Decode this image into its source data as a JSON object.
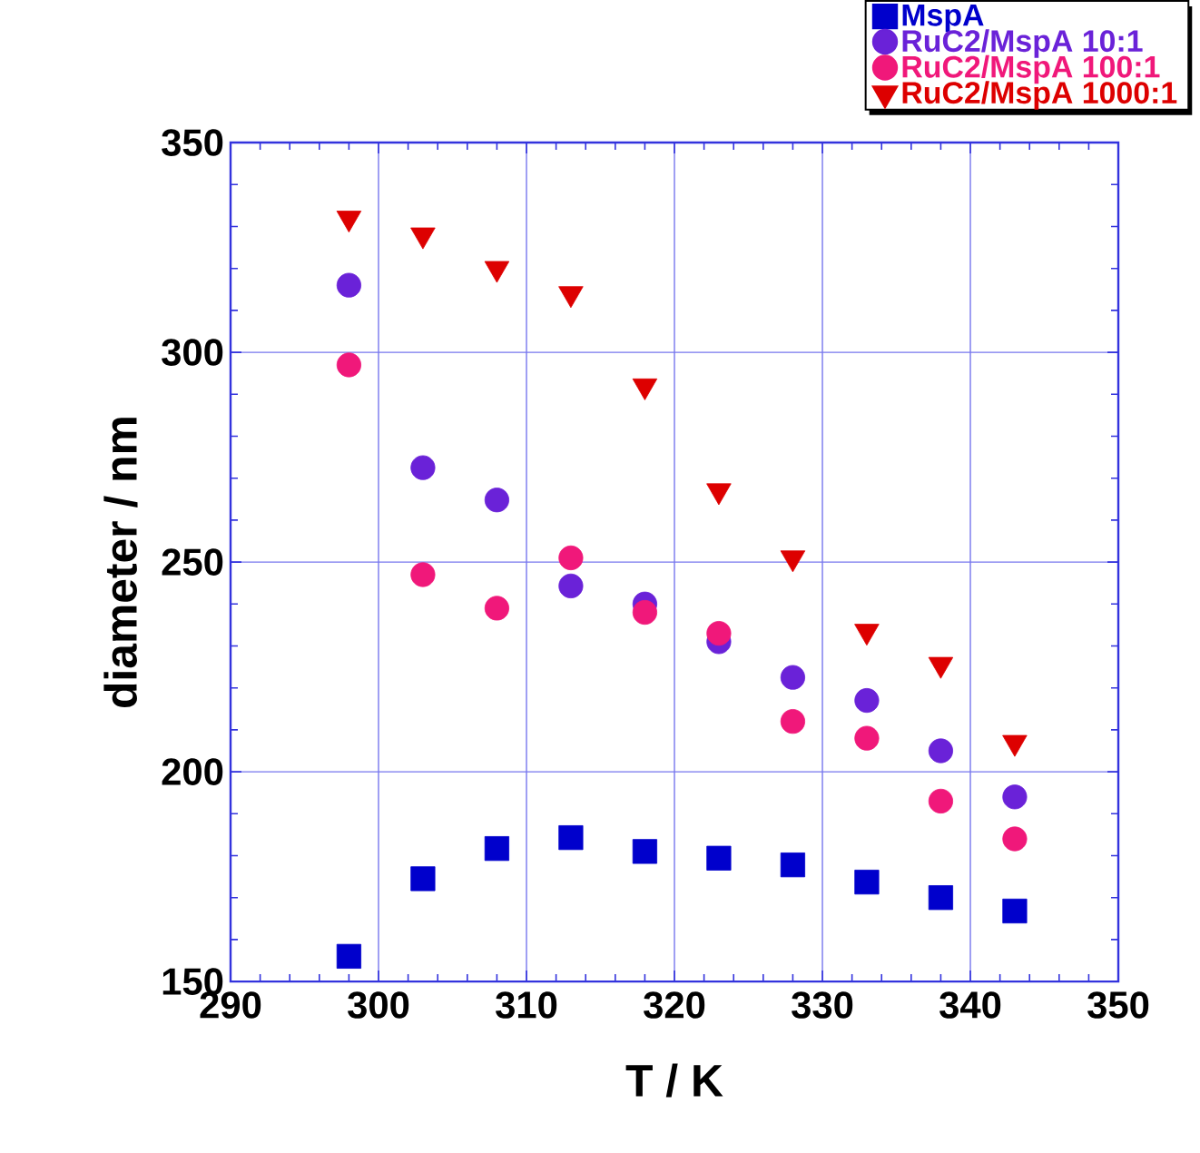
{
  "chart_data": {
    "type": "scatter",
    "xlabel": "T / K",
    "ylabel": "diameter / nm",
    "x": [
      298,
      303,
      308,
      313,
      318,
      323,
      328,
      333,
      338,
      343
    ],
    "series": [
      {
        "name": "MspA",
        "color": "#0000cc",
        "marker": "square",
        "values": [
          156,
          174.5,
          181.7,
          184.3,
          181,
          179.4,
          177.8,
          173.7,
          170,
          166.8
        ]
      },
      {
        "name": "RuC2/MspA 10:1",
        "color": "#6a22d8",
        "marker": "circle",
        "values": [
          316,
          272.5,
          264.8,
          244.3,
          240,
          231,
          222.5,
          217,
          205,
          194
        ]
      },
      {
        "name": "RuC2/MspA 100:1",
        "color": "#f0187a",
        "marker": "circle",
        "values": [
          297,
          247,
          239,
          251,
          238,
          233,
          212,
          208,
          193,
          184
        ]
      },
      {
        "name": "RuC2/MspA 1000:1",
        "color": "#dd0000",
        "marker": "triangle",
        "values": [
          332,
          328,
          320,
          314,
          292,
          267,
          251,
          233.5,
          225.6,
          207
        ]
      }
    ],
    "xlim": [
      290,
      350
    ],
    "ylim": [
      150,
      350
    ],
    "xticks": [
      290,
      300,
      310,
      320,
      330,
      340,
      350
    ],
    "yticks": [
      150,
      200,
      250,
      300,
      350
    ],
    "grid": true,
    "legend": "top right"
  }
}
